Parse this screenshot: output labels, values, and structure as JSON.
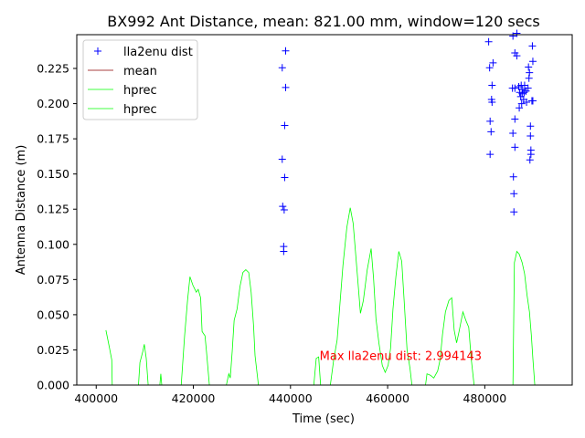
{
  "chart_data": {
    "type": "scatter",
    "title": "BX992 Ant Distance, mean: 821.00 mm, window=120 secs",
    "xlabel": "Time (sec)",
    "ylabel": "Antenna Distance (m)",
    "xlim": [
      396000,
      498000
    ],
    "ylim": [
      0.0,
      0.249
    ],
    "x_ticks": [
      400000,
      420000,
      440000,
      460000,
      480000
    ],
    "x_tick_labels": [
      "400000",
      "420000",
      "440000",
      "460000",
      "480000"
    ],
    "y_ticks": [
      0.0,
      0.025,
      0.05,
      0.075,
      0.1,
      0.125,
      0.15,
      0.175,
      0.2,
      0.225
    ],
    "y_tick_labels": [
      "0.000",
      "0.025",
      "0.050",
      "0.075",
      "0.100",
      "0.125",
      "0.150",
      "0.175",
      "0.200",
      "0.225"
    ],
    "grid": false,
    "legend_position": "top-left",
    "annotation": {
      "text": "Max lla2enu dist: 2.994143",
      "x": 446000,
      "y": 0.021,
      "color": "#ff0000"
    },
    "series": [
      {
        "name": "lla2enu dist",
        "kind": "marker",
        "marker": "+",
        "color": "#0000ff",
        "points": [
          [
            438300,
            0.2255
          ],
          [
            439000,
            0.2375
          ],
          [
            439000,
            0.2115
          ],
          [
            438800,
            0.1845
          ],
          [
            438300,
            0.1605
          ],
          [
            438800,
            0.1475
          ],
          [
            438400,
            0.127
          ],
          [
            438700,
            0.1245
          ],
          [
            438600,
            0.0985
          ],
          [
            438600,
            0.095
          ],
          [
            480800,
            0.244
          ],
          [
            481000,
            0.2255
          ],
          [
            481700,
            0.229
          ],
          [
            481500,
            0.213
          ],
          [
            481400,
            0.203
          ],
          [
            481500,
            0.201
          ],
          [
            481100,
            0.1875
          ],
          [
            481300,
            0.18
          ],
          [
            481100,
            0.164
          ],
          [
            485800,
            0.248
          ],
          [
            486600,
            0.25
          ],
          [
            486200,
            0.236
          ],
          [
            486600,
            0.234
          ],
          [
            486200,
            0.211
          ],
          [
            485700,
            0.211
          ],
          [
            487000,
            0.212
          ],
          [
            487500,
            0.213
          ],
          [
            487800,
            0.21
          ],
          [
            488200,
            0.213
          ],
          [
            488900,
            0.211
          ],
          [
            487200,
            0.208
          ],
          [
            487700,
            0.207
          ],
          [
            488100,
            0.208
          ],
          [
            488500,
            0.209
          ],
          [
            487400,
            0.205
          ],
          [
            488000,
            0.203
          ],
          [
            487600,
            0.2
          ],
          [
            488600,
            0.201
          ],
          [
            487100,
            0.197
          ],
          [
            489000,
            0.226
          ],
          [
            489200,
            0.222
          ],
          [
            489100,
            0.218
          ],
          [
            489700,
            0.202
          ],
          [
            489900,
            0.202
          ],
          [
            489800,
            0.241
          ],
          [
            489900,
            0.23
          ],
          [
            486200,
            0.189
          ],
          [
            485800,
            0.179
          ],
          [
            486200,
            0.169
          ],
          [
            489400,
            0.184
          ],
          [
            489400,
            0.177
          ],
          [
            489500,
            0.167
          ],
          [
            489500,
            0.164
          ],
          [
            489300,
            0.16
          ],
          [
            485900,
            0.148
          ],
          [
            486000,
            0.136
          ],
          [
            486000,
            0.123
          ]
        ]
      },
      {
        "name": "mean",
        "kind": "line",
        "color": "#8b0000",
        "points": []
      },
      {
        "name": "hprec",
        "kind": "line",
        "color": "#00ff00",
        "segments": [
          [
            [
              402000,
              0.039
            ],
            [
              402700,
              0.027
            ],
            [
              403200,
              0.018
            ],
            [
              403300,
              0.0
            ]
          ],
          [
            [
              408700,
              0.0
            ],
            [
              409000,
              0.016
            ],
            [
              409600,
              0.024
            ],
            [
              409900,
              0.029
            ],
            [
              410300,
              0.019
            ],
            [
              410700,
              0.0
            ]
          ],
          [
            [
              413100,
              0.0
            ],
            [
              413300,
              0.008
            ],
            [
              413500,
              0.0
            ]
          ],
          [
            [
              417500,
              0.0
            ],
            [
              418200,
              0.035
            ],
            [
              418800,
              0.06
            ],
            [
              419300,
              0.077
            ],
            [
              419900,
              0.071
            ],
            [
              420600,
              0.066
            ],
            [
              421000,
              0.068
            ],
            [
              421500,
              0.062
            ],
            [
              421800,
              0.038
            ],
            [
              422400,
              0.035
            ],
            [
              422700,
              0.024
            ],
            [
              423300,
              0.0
            ]
          ],
          [
            [
              426800,
              0.0
            ],
            [
              427300,
              0.008
            ],
            [
              427600,
              0.005
            ],
            [
              428000,
              0.024
            ],
            [
              428400,
              0.046
            ],
            [
              429000,
              0.054
            ],
            [
              429600,
              0.07
            ],
            [
              430200,
              0.08
            ],
            [
              430800,
              0.082
            ],
            [
              431400,
              0.08
            ],
            [
              431900,
              0.066
            ],
            [
              432400,
              0.042
            ],
            [
              432700,
              0.021
            ],
            [
              433400,
              0.0
            ]
          ],
          [
            [
              444800,
              0.0
            ],
            [
              445300,
              0.019
            ],
            [
              445800,
              0.02
            ],
            [
              446200,
              0.0
            ]
          ],
          [
            [
              448200,
              0.0
            ],
            [
              448900,
              0.018
            ],
            [
              449600,
              0.032
            ],
            [
              450100,
              0.054
            ],
            [
              450800,
              0.085
            ],
            [
              451600,
              0.112
            ],
            [
              452300,
              0.126
            ],
            [
              452900,
              0.115
            ],
            [
              453800,
              0.077
            ],
            [
              454400,
              0.051
            ],
            [
              455000,
              0.06
            ],
            [
              455800,
              0.082
            ],
            [
              456600,
              0.097
            ],
            [
              457100,
              0.076
            ],
            [
              457600,
              0.047
            ],
            [
              458200,
              0.03
            ],
            [
              458900,
              0.014
            ],
            [
              459500,
              0.009
            ],
            [
              460100,
              0.014
            ],
            [
              460600,
              0.026
            ],
            [
              461100,
              0.054
            ],
            [
              461700,
              0.077
            ],
            [
              462300,
              0.095
            ],
            [
              462900,
              0.088
            ],
            [
              463400,
              0.06
            ],
            [
              464000,
              0.025
            ],
            [
              464600,
              0.012
            ],
            [
              465000,
              0.0
            ]
          ]
        ]
      },
      {
        "name": "hprec",
        "kind": "line",
        "color": "#00ff00",
        "segments": [
          [
            [
              467800,
              0.0
            ],
            [
              468100,
              0.008
            ],
            [
              468800,
              0.007
            ],
            [
              469500,
              0.005
            ],
            [
              470300,
              0.01
            ],
            [
              470800,
              0.018
            ],
            [
              471300,
              0.036
            ],
            [
              471900,
              0.052
            ],
            [
              472600,
              0.06
            ],
            [
              473200,
              0.062
            ],
            [
              473700,
              0.039
            ],
            [
              474200,
              0.03
            ],
            [
              474700,
              0.038
            ],
            [
              475500,
              0.052
            ],
            [
              476100,
              0.046
            ],
            [
              476700,
              0.041
            ],
            [
              477200,
              0.019
            ],
            [
              477800,
              0.0
            ]
          ],
          [
            [
              485800,
              0.0
            ],
            [
              486100,
              0.087
            ],
            [
              486600,
              0.095
            ],
            [
              487100,
              0.093
            ],
            [
              487700,
              0.087
            ],
            [
              488200,
              0.079
            ],
            [
              488700,
              0.064
            ],
            [
              489200,
              0.052
            ],
            [
              489600,
              0.035
            ],
            [
              489900,
              0.019
            ],
            [
              490300,
              0.0
            ]
          ]
        ]
      }
    ]
  }
}
